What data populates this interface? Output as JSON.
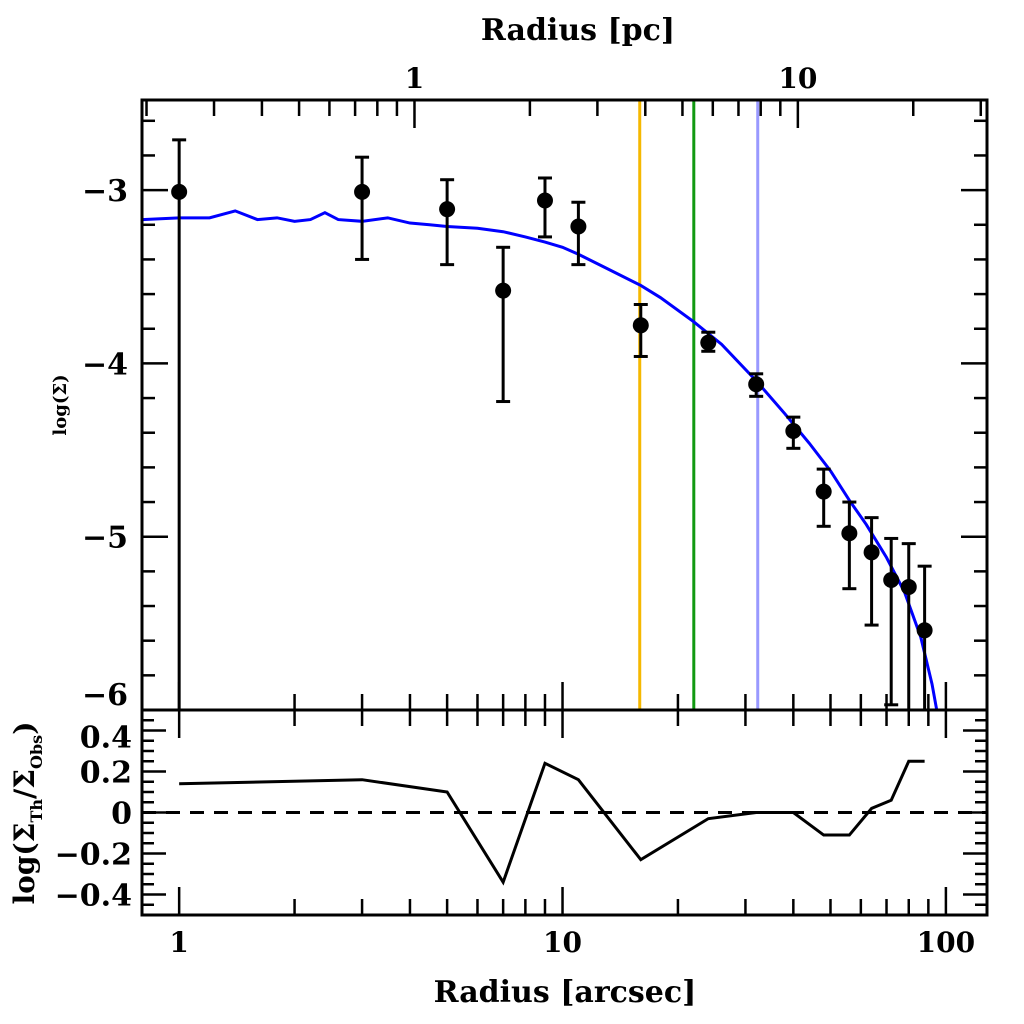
{
  "chart_data": [
    {
      "type": "scatter",
      "panel": "main",
      "xlabel": "Radius [arcsec]",
      "x2label": "Radius [pc]",
      "ylabel": "log(Σ)",
      "xscale": "log",
      "xlim": [
        0.8,
        128
      ],
      "ylim": [
        -6,
        -2.48
      ],
      "yticks": [
        -3,
        -4,
        -5,
        -6
      ],
      "ytick_labels": [
        "−3",
        "−4",
        "−5",
        "−6"
      ],
      "x2ticks_pc": [
        1,
        10
      ],
      "x2tick_labels": [
        "1",
        "10"
      ],
      "arcsec_per_pc": 4.11,
      "grid": false,
      "points": {
        "x": [
          1,
          3,
          5,
          7,
          9,
          11,
          16,
          24,
          32,
          40,
          48,
          56,
          64,
          72,
          80,
          88
        ],
        "y": [
          -3.01,
          -3.01,
          -3.11,
          -3.58,
          -3.06,
          -3.21,
          -3.78,
          -3.88,
          -4.12,
          -4.39,
          -4.74,
          -4.98,
          -5.09,
          -5.25,
          -5.29,
          -5.54
        ],
        "y_upper": [
          -2.71,
          -2.81,
          -2.94,
          -3.33,
          -2.93,
          -3.07,
          -3.66,
          -3.82,
          -4.06,
          -4.31,
          -4.61,
          -4.8,
          -4.89,
          -5.01,
          -5.04,
          -5.17
        ],
        "y_lower": [
          -6.5,
          -3.4,
          -3.43,
          -4.22,
          -3.27,
          -3.43,
          -3.96,
          -3.93,
          -4.19,
          -4.49,
          -4.94,
          -5.3,
          -5.51,
          -5.97,
          -6.5,
          -6.5
        ],
        "color": "#000000"
      },
      "model_curve": {
        "x": [
          0.8,
          1.0,
          1.2,
          1.4,
          1.6,
          1.8,
          2.0,
          2.2,
          2.4,
          2.6,
          3.0,
          3.5,
          4.0,
          4.5,
          5.0,
          6.0,
          7.0,
          8.0,
          9.0,
          10.0,
          11.0,
          13.0,
          16.0,
          18.0,
          22.0,
          26.0,
          32.0,
          38.0,
          44.0,
          50.0,
          56.0,
          62.0,
          70.0,
          78.0,
          86.0,
          92.0,
          95.0
        ],
        "y": [
          -3.17,
          -3.16,
          -3.16,
          -3.12,
          -3.17,
          -3.16,
          -3.18,
          -3.17,
          -3.13,
          -3.17,
          -3.18,
          -3.16,
          -3.19,
          -3.2,
          -3.21,
          -3.22,
          -3.24,
          -3.27,
          -3.3,
          -3.33,
          -3.37,
          -3.45,
          -3.55,
          -3.62,
          -3.76,
          -3.89,
          -4.1,
          -4.29,
          -4.46,
          -4.62,
          -4.79,
          -4.93,
          -5.12,
          -5.32,
          -5.58,
          -5.85,
          -6.02
        ],
        "color": "#0000ff"
      },
      "vertical_lines": [
        {
          "x": 15.9,
          "color": "#f5b800"
        },
        {
          "x": 22.0,
          "color": "#119911"
        },
        {
          "x": 32.3,
          "color": "#9999ff"
        }
      ]
    },
    {
      "type": "line",
      "panel": "residual",
      "xlabel": "Radius [arcsec]",
      "ylabel_main": "log(Σ",
      "ylabel_sub1": "Th",
      "ylabel_mid": "/Σ",
      "ylabel_sub2": "Obs",
      "ylabel_end": ")",
      "xscale": "log",
      "xlim": [
        0.8,
        128
      ],
      "ylim": [
        -0.5,
        0.5
      ],
      "xticks": [
        1,
        10,
        100
      ],
      "xtick_labels": [
        "1",
        "10",
        "100"
      ],
      "yticks": [
        0.4,
        0.2,
        0,
        -0.2,
        -0.4
      ],
      "ytick_labels": [
        "0.4",
        "0.2",
        "0",
        "−0.2",
        "−0.4"
      ],
      "x": [
        1,
        3,
        5,
        7,
        9,
        11,
        16,
        24,
        32,
        40,
        48,
        56,
        64,
        72,
        80,
        88
      ],
      "y": [
        0.14,
        0.16,
        0.1,
        -0.34,
        0.24,
        0.16,
        -0.23,
        -0.03,
        0.0,
        0.0,
        -0.11,
        -0.11,
        0.02,
        0.06,
        0.25,
        0.25
      ],
      "reference_line": {
        "y": 0,
        "style": "dashed"
      },
      "color": "#000000"
    }
  ]
}
